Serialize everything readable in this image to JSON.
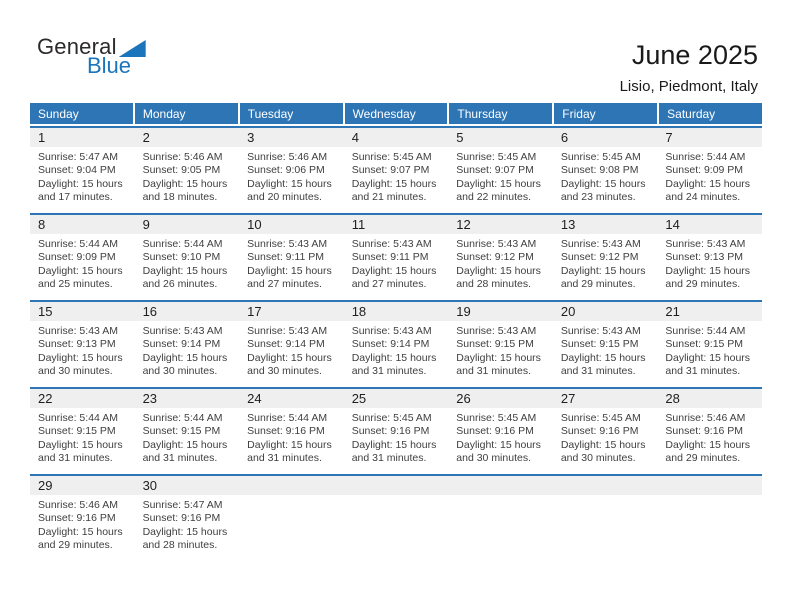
{
  "logo": {
    "part1": "General",
    "part2": "Blue"
  },
  "header": {
    "title": "June 2025",
    "subtitle": "Lisio, Piedmont, Italy"
  },
  "colors": {
    "accent_blue": "#2e75b6",
    "logo_blue": "#1b75bc",
    "band_gray": "#efefef"
  },
  "weekday_headers": [
    "Sunday",
    "Monday",
    "Tuesday",
    "Wednesday",
    "Thursday",
    "Friday",
    "Saturday"
  ],
  "weeks": [
    [
      {
        "day": "1",
        "sunrise": "Sunrise: 5:47 AM",
        "sunset": "Sunset: 9:04 PM",
        "daylight": "Daylight: 15 hours and 17 minutes."
      },
      {
        "day": "2",
        "sunrise": "Sunrise: 5:46 AM",
        "sunset": "Sunset: 9:05 PM",
        "daylight": "Daylight: 15 hours and 18 minutes."
      },
      {
        "day": "3",
        "sunrise": "Sunrise: 5:46 AM",
        "sunset": "Sunset: 9:06 PM",
        "daylight": "Daylight: 15 hours and 20 minutes."
      },
      {
        "day": "4",
        "sunrise": "Sunrise: 5:45 AM",
        "sunset": "Sunset: 9:07 PM",
        "daylight": "Daylight: 15 hours and 21 minutes."
      },
      {
        "day": "5",
        "sunrise": "Sunrise: 5:45 AM",
        "sunset": "Sunset: 9:07 PM",
        "daylight": "Daylight: 15 hours and 22 minutes."
      },
      {
        "day": "6",
        "sunrise": "Sunrise: 5:45 AM",
        "sunset": "Sunset: 9:08 PM",
        "daylight": "Daylight: 15 hours and 23 minutes."
      },
      {
        "day": "7",
        "sunrise": "Sunrise: 5:44 AM",
        "sunset": "Sunset: 9:09 PM",
        "daylight": "Daylight: 15 hours and 24 minutes."
      }
    ],
    [
      {
        "day": "8",
        "sunrise": "Sunrise: 5:44 AM",
        "sunset": "Sunset: 9:09 PM",
        "daylight": "Daylight: 15 hours and 25 minutes."
      },
      {
        "day": "9",
        "sunrise": "Sunrise: 5:44 AM",
        "sunset": "Sunset: 9:10 PM",
        "daylight": "Daylight: 15 hours and 26 minutes."
      },
      {
        "day": "10",
        "sunrise": "Sunrise: 5:43 AM",
        "sunset": "Sunset: 9:11 PM",
        "daylight": "Daylight: 15 hours and 27 minutes."
      },
      {
        "day": "11",
        "sunrise": "Sunrise: 5:43 AM",
        "sunset": "Sunset: 9:11 PM",
        "daylight": "Daylight: 15 hours and 27 minutes."
      },
      {
        "day": "12",
        "sunrise": "Sunrise: 5:43 AM",
        "sunset": "Sunset: 9:12 PM",
        "daylight": "Daylight: 15 hours and 28 minutes."
      },
      {
        "day": "13",
        "sunrise": "Sunrise: 5:43 AM",
        "sunset": "Sunset: 9:12 PM",
        "daylight": "Daylight: 15 hours and 29 minutes."
      },
      {
        "day": "14",
        "sunrise": "Sunrise: 5:43 AM",
        "sunset": "Sunset: 9:13 PM",
        "daylight": "Daylight: 15 hours and 29 minutes."
      }
    ],
    [
      {
        "day": "15",
        "sunrise": "Sunrise: 5:43 AM",
        "sunset": "Sunset: 9:13 PM",
        "daylight": "Daylight: 15 hours and 30 minutes."
      },
      {
        "day": "16",
        "sunrise": "Sunrise: 5:43 AM",
        "sunset": "Sunset: 9:14 PM",
        "daylight": "Daylight: 15 hours and 30 minutes."
      },
      {
        "day": "17",
        "sunrise": "Sunrise: 5:43 AM",
        "sunset": "Sunset: 9:14 PM",
        "daylight": "Daylight: 15 hours and 30 minutes."
      },
      {
        "day": "18",
        "sunrise": "Sunrise: 5:43 AM",
        "sunset": "Sunset: 9:14 PM",
        "daylight": "Daylight: 15 hours and 31 minutes."
      },
      {
        "day": "19",
        "sunrise": "Sunrise: 5:43 AM",
        "sunset": "Sunset: 9:15 PM",
        "daylight": "Daylight: 15 hours and 31 minutes."
      },
      {
        "day": "20",
        "sunrise": "Sunrise: 5:43 AM",
        "sunset": "Sunset: 9:15 PM",
        "daylight": "Daylight: 15 hours and 31 minutes."
      },
      {
        "day": "21",
        "sunrise": "Sunrise: 5:44 AM",
        "sunset": "Sunset: 9:15 PM",
        "daylight": "Daylight: 15 hours and 31 minutes."
      }
    ],
    [
      {
        "day": "22",
        "sunrise": "Sunrise: 5:44 AM",
        "sunset": "Sunset: 9:15 PM",
        "daylight": "Daylight: 15 hours and 31 minutes."
      },
      {
        "day": "23",
        "sunrise": "Sunrise: 5:44 AM",
        "sunset": "Sunset: 9:15 PM",
        "daylight": "Daylight: 15 hours and 31 minutes."
      },
      {
        "day": "24",
        "sunrise": "Sunrise: 5:44 AM",
        "sunset": "Sunset: 9:16 PM",
        "daylight": "Daylight: 15 hours and 31 minutes."
      },
      {
        "day": "25",
        "sunrise": "Sunrise: 5:45 AM",
        "sunset": "Sunset: 9:16 PM",
        "daylight": "Daylight: 15 hours and 31 minutes."
      },
      {
        "day": "26",
        "sunrise": "Sunrise: 5:45 AM",
        "sunset": "Sunset: 9:16 PM",
        "daylight": "Daylight: 15 hours and 30 minutes."
      },
      {
        "day": "27",
        "sunrise": "Sunrise: 5:45 AM",
        "sunset": "Sunset: 9:16 PM",
        "daylight": "Daylight: 15 hours and 30 minutes."
      },
      {
        "day": "28",
        "sunrise": "Sunrise: 5:46 AM",
        "sunset": "Sunset: 9:16 PM",
        "daylight": "Daylight: 15 hours and 29 minutes."
      }
    ],
    [
      {
        "day": "29",
        "sunrise": "Sunrise: 5:46 AM",
        "sunset": "Sunset: 9:16 PM",
        "daylight": "Daylight: 15 hours and 29 minutes."
      },
      {
        "day": "30",
        "sunrise": "Sunrise: 5:47 AM",
        "sunset": "Sunset: 9:16 PM",
        "daylight": "Daylight: 15 hours and 28 minutes."
      },
      null,
      null,
      null,
      null,
      null
    ]
  ]
}
